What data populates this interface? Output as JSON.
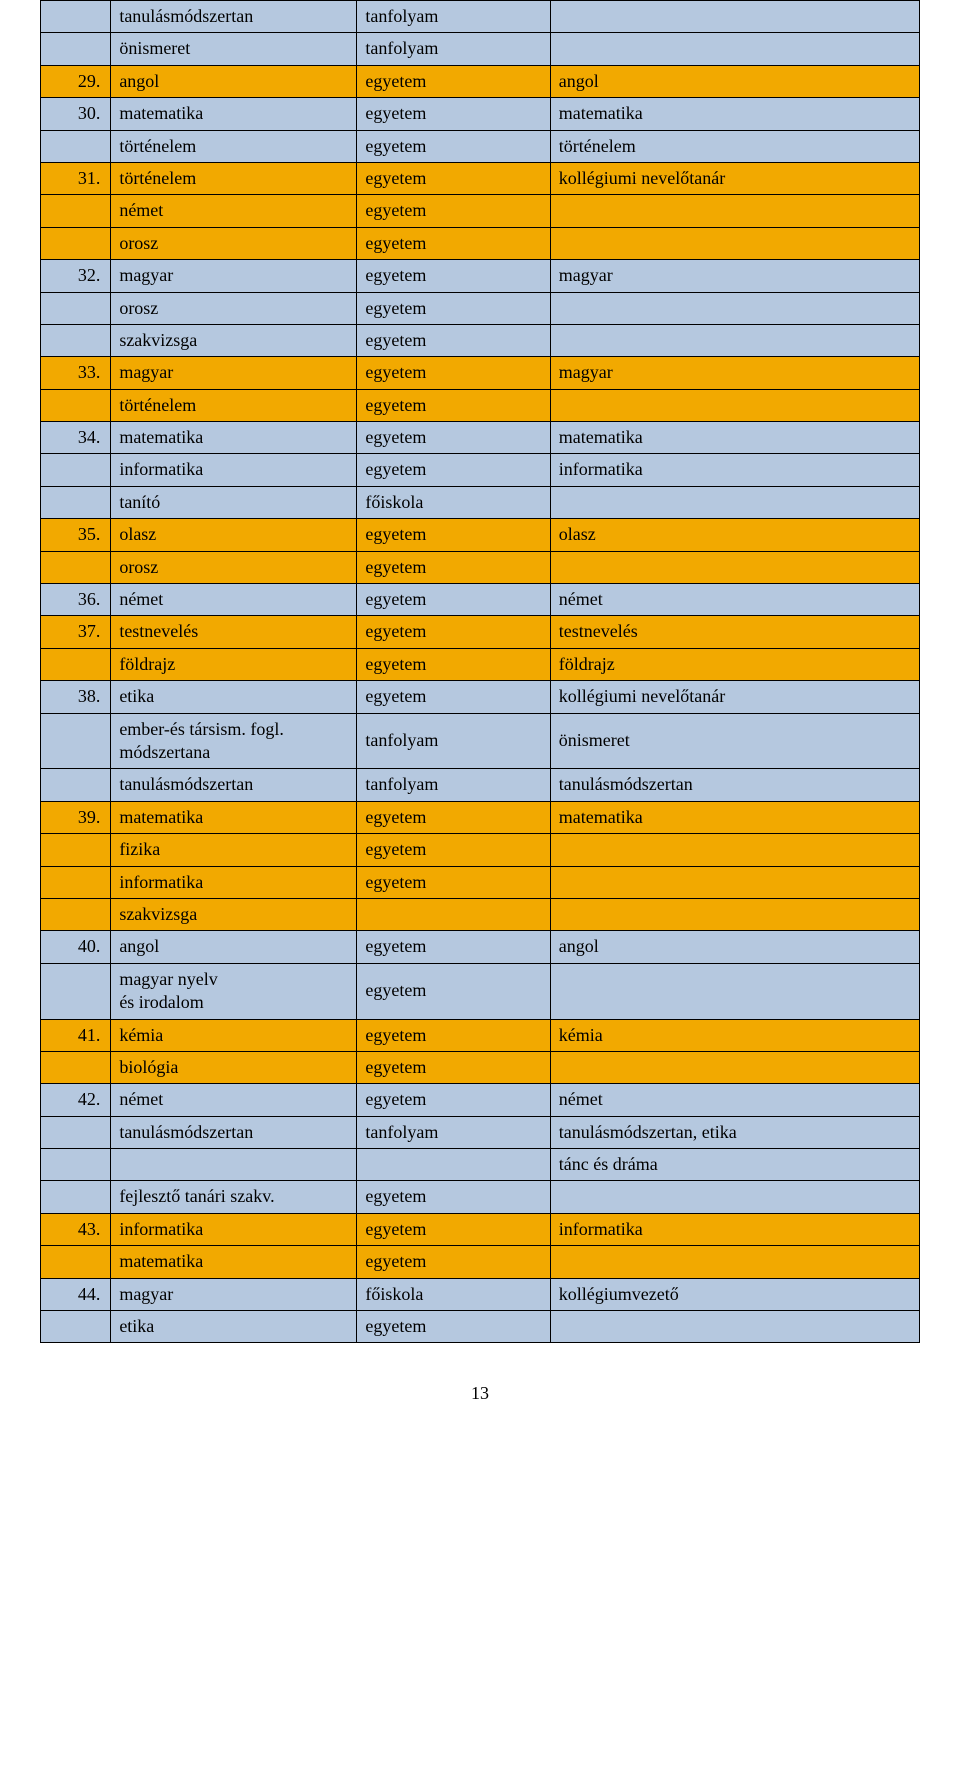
{
  "colors": {
    "orange": "#f2a900",
    "blue": "#b5c8df",
    "border": "#000000",
    "text": "#000000",
    "background": "#ffffff"
  },
  "typography": {
    "font_family": "Times New Roman",
    "font_size_pt": 14
  },
  "columns": [
    {
      "key": "num",
      "width_pct": 8,
      "align": "right"
    },
    {
      "key": "a",
      "width_pct": 28,
      "align": "left"
    },
    {
      "key": "b",
      "width_pct": 22,
      "align": "left"
    },
    {
      "key": "c",
      "width_pct": 42,
      "align": "left"
    }
  ],
  "rows": [
    {
      "num": "",
      "a": "tanulásmódszertan",
      "b": "tanfolyam",
      "c": "",
      "color": "blue"
    },
    {
      "num": "",
      "a": "önismeret",
      "b": "tanfolyam",
      "c": "",
      "color": "blue"
    },
    {
      "num": "29.",
      "a": "angol",
      "b": "egyetem",
      "c": "angol",
      "color": "orange"
    },
    {
      "num": "30.",
      "a": "matematika",
      "b": "egyetem",
      "c": "matematika",
      "color": "blue"
    },
    {
      "num": "",
      "a": "történelem",
      "b": "egyetem",
      "c": "történelem",
      "color": "blue"
    },
    {
      "num": "31.",
      "a": "történelem",
      "b": "egyetem",
      "c": "kollégiumi nevelőtanár",
      "color": "orange"
    },
    {
      "num": "",
      "a": "német",
      "b": "egyetem",
      "c": "",
      "color": "orange"
    },
    {
      "num": "",
      "a": "orosz",
      "b": "egyetem",
      "c": "",
      "color": "orange"
    },
    {
      "num": "32.",
      "a": "magyar",
      "b": "egyetem",
      "c": "magyar",
      "color": "blue"
    },
    {
      "num": "",
      "a": "orosz",
      "b": "egyetem",
      "c": "",
      "color": "blue"
    },
    {
      "num": "",
      "a": "szakvizsga",
      "b": "egyetem",
      "c": "",
      "color": "blue"
    },
    {
      "num": "33.",
      "a": "magyar",
      "b": "egyetem",
      "c": "magyar",
      "color": "orange"
    },
    {
      "num": "",
      "a": "történelem",
      "b": "egyetem",
      "c": "",
      "color": "orange"
    },
    {
      "num": "34.",
      "a": "matematika",
      "b": "egyetem",
      "c": "matematika",
      "color": "blue"
    },
    {
      "num": "",
      "a": "informatika",
      "b": "egyetem",
      "c": "informatika",
      "color": "blue"
    },
    {
      "num": "",
      "a": "tanító",
      "b": "főiskola",
      "c": "",
      "color": "blue"
    },
    {
      "num": "35.",
      "a": "olasz",
      "b": "egyetem",
      "c": "olasz",
      "color": "orange"
    },
    {
      "num": "",
      "a": "orosz",
      "b": "egyetem",
      "c": "",
      "color": "orange"
    },
    {
      "num": "36.",
      "a": "német",
      "b": "egyetem",
      "c": "német",
      "color": "blue"
    },
    {
      "num": "37.",
      "a": "testnevelés",
      "b": "egyetem",
      "c": "testnevelés",
      "color": "orange"
    },
    {
      "num": "",
      "a": "földrajz",
      "b": "egyetem",
      "c": "földrajz",
      "color": "orange"
    },
    {
      "num": "38.",
      "a": "etika",
      "b": "egyetem",
      "c": "kollégiumi nevelőtanár",
      "color": "blue"
    },
    {
      "num": "",
      "a": " ember-és társism. fogl. módszertana",
      "b": "tanfolyam",
      "c": "önismeret",
      "color": "blue"
    },
    {
      "num": "",
      "a": "tanulásmódszertan",
      "b": "tanfolyam",
      "c": "tanulásmódszertan",
      "color": "blue"
    },
    {
      "num": "39.",
      "a": "matematika",
      "b": "egyetem",
      "c": "matematika",
      "color": "orange"
    },
    {
      "num": "",
      "a": "fizika",
      "b": "egyetem",
      "c": "",
      "color": "orange"
    },
    {
      "num": "",
      "a": "informatika",
      "b": "egyetem",
      "c": "",
      "color": "orange"
    },
    {
      "num": "",
      "a": "szakvizsga",
      "b": "",
      "c": "",
      "color": "orange"
    },
    {
      "num": "40.",
      "a": "angol",
      "b": "egyetem",
      "c": "angol",
      "color": "blue"
    },
    {
      "num": "",
      "a": "magyar nyelv\n és irodalom",
      "b": "egyetem",
      "c": "",
      "color": "blue"
    },
    {
      "num": "41.",
      "a": "kémia",
      "b": "egyetem",
      "c": "kémia",
      "color": "orange"
    },
    {
      "num": "",
      "a": "biológia",
      "b": "egyetem",
      "c": "",
      "color": "orange"
    },
    {
      "num": "42.",
      "a": "német",
      "b": "egyetem",
      "c": "német",
      "color": "blue"
    },
    {
      "num": "",
      "a": "tanulásmódszertan",
      "b": "tanfolyam",
      "c": "tanulásmódszertan, etika",
      "color": "blue"
    },
    {
      "num": "",
      "a": "",
      "b": "",
      "c": "tánc és dráma",
      "color": "blue"
    },
    {
      "num": "",
      "a": "fejlesztő tanári szakv.",
      "b": "egyetem",
      "c": "",
      "color": "blue"
    },
    {
      "num": "43.",
      "a": "informatika",
      "b": "egyetem",
      "c": "informatika",
      "color": "orange"
    },
    {
      "num": "",
      "a": "matematika",
      "b": "egyetem",
      "c": "",
      "color": "orange"
    },
    {
      "num": "44.",
      "a": "magyar",
      "b": "főiskola",
      "c": "kollégiumvezető",
      "color": "blue"
    },
    {
      "num": "",
      "a": "etika",
      "b": "egyetem",
      "c": "",
      "color": "blue"
    }
  ],
  "page_number": "13"
}
